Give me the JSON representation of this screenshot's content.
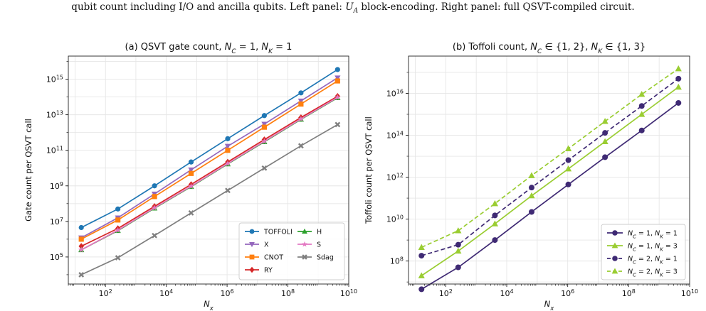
{
  "caption": {
    "text_before": "qubit count including I/O and ancilla qubits. Left panel: ",
    "math": "U",
    "math_sub": "A",
    "text_after": " block-encoding. Right panel: full QSVT-compiled circuit."
  },
  "chart_data": [
    {
      "type": "line",
      "title": "(a) QSVT gate count, N_C = 1, N_K = 1",
      "title_parts": {
        "prefix": "(a) QSVT gate count, ",
        "v1": "N",
        "s1": "C",
        "mid": " = 1, ",
        "v2": "N",
        "s2": "K",
        "suffix": " = 1"
      },
      "xlabel": "N_x",
      "ylabel": "Gate count per QSVT call",
      "xscale": "log",
      "yscale": "log",
      "xlim": [
        6,
        10000000000.0
      ],
      "ylim": [
        3000,
        2e+16
      ],
      "xticks": [
        2,
        4,
        6,
        8,
        10
      ],
      "yticks": [
        5,
        7,
        9,
        11,
        13,
        15
      ],
      "grid": true,
      "legend_position": "lower-right",
      "legend_columns": 2,
      "x": [
        16,
        256,
        4096,
        65536,
        1048576,
        16777216,
        268435456,
        4294967296
      ],
      "series": [
        {
          "name": "TOFFOLI",
          "color": "#1f77b4",
          "marker": "circle",
          "dash": "solid",
          "values": [
            4500000.0,
            50000000.0,
            1000000000.0,
            22000000000.0,
            450000000000.0,
            9000000000000.0,
            170000000000000.0,
            3500000000000000.0
          ]
        },
        {
          "name": "X",
          "color": "#9467bd",
          "marker": "triangle-down",
          "dash": "solid",
          "values": [
            1200000.0,
            16000000.0,
            350000000.0,
            8000000000.0,
            170000000000.0,
            3000000000000.0,
            60000000000000.0,
            1200000000000000.0
          ]
        },
        {
          "name": "CNOT",
          "color": "#ff7f0e",
          "marker": "square",
          "dash": "solid",
          "values": [
            1000000.0,
            12000000.0,
            250000000.0,
            5000000000.0,
            100000000000.0,
            2000000000000.0,
            40000000000000.0,
            800000000000000.0
          ]
        },
        {
          "name": "RY",
          "color": "#d62728",
          "marker": "diamond",
          "dash": "solid",
          "values": [
            400000.0,
            4000000.0,
            70000000.0,
            1200000000.0,
            22000000000.0,
            400000000000.0,
            7000000000000.0,
            110000000000000.0
          ]
        },
        {
          "name": "H",
          "color": "#2ca02c",
          "marker": "triangle-up",
          "dash": "solid",
          "values": [
            250000.0,
            3000000.0,
            55000000.0,
            900000000.0,
            17000000000.0,
            300000000000.0,
            5500000000000.0,
            90000000000000.0
          ]
        },
        {
          "name": "S",
          "color": "#e377c2",
          "marker": "star",
          "dash": "solid",
          "values": [
            250000.0,
            3200000.0,
            58000000.0,
            950000000.0,
            18000000000.0,
            320000000000.0,
            5800000000000.0,
            95000000000000.0
          ]
        },
        {
          "name": "Sdag",
          "color": "#7f7f7f",
          "marker": "x",
          "dash": "solid",
          "values": [
            10000.0,
            90000.0,
            1600000.0,
            30000000.0,
            550000000.0,
            10000000000.0,
            180000000000.0,
            2800000000000.0
          ]
        }
      ],
      "legend_order": [
        "TOFFOLI",
        "X",
        "CNOT",
        "RY",
        "H",
        "S",
        "Sdag"
      ]
    },
    {
      "type": "line",
      "title": "(b) Toffoli count, N_C ∈ {1, 2}, N_K ∈ {1, 3}",
      "title_parts": {
        "prefix": "(b) Toffoli count, ",
        "v1": "N",
        "s1": "C",
        "mid": " ∈ {1, 2}, ",
        "v2": "N",
        "s2": "K",
        "suffix": " ∈ {1, 3}"
      },
      "xlabel": "N_x",
      "ylabel": "Toffoli count per QSVT call",
      "xscale": "log",
      "yscale": "log",
      "xlim": [
        6,
        10000000000.0
      ],
      "ylim": [
        8000000.0,
        6e+17
      ],
      "xticks": [
        2,
        4,
        6,
        8,
        10
      ],
      "yticks": [
        8,
        10,
        12,
        14,
        16
      ],
      "grid": true,
      "legend_position": "lower-right",
      "legend_columns": 1,
      "x": [
        16,
        256,
        4096,
        65536,
        1048576,
        16777216,
        268435456,
        4294967296
      ],
      "series": [
        {
          "name": "N_C = 1, N_K = 1",
          "label_parts": {
            "a": "1",
            "b": "1"
          },
          "color": "#3f2a74",
          "marker": "circle",
          "dash": "solid",
          "values": [
            4500000.0,
            50000000.0,
            1000000000.0,
            22000000000.0,
            450000000000.0,
            9000000000000.0,
            170000000000000.0,
            3500000000000000.0
          ]
        },
        {
          "name": "N_C = 1, N_K = 3",
          "label_parts": {
            "a": "1",
            "b": "3"
          },
          "color": "#9acd32",
          "marker": "triangle-up",
          "dash": "solid",
          "values": [
            20000000.0,
            300000000.0,
            6000000000.0,
            130000000000.0,
            2500000000000.0,
            50000000000000.0,
            1000000000000000.0,
            2e+16
          ]
        },
        {
          "name": "N_C = 2, N_K = 1",
          "label_parts": {
            "a": "2",
            "b": "1"
          },
          "color": "#3f2a74",
          "marker": "circle",
          "dash": "dashed",
          "values": [
            180000000.0,
            600000000.0,
            15000000000.0,
            320000000000.0,
            6500000000000.0,
            130000000000000.0,
            2500000000000000.0,
            5e+16
          ]
        },
        {
          "name": "N_C = 2, N_K = 3",
          "label_parts": {
            "a": "2",
            "b": "3"
          },
          "color": "#9acd32",
          "marker": "triangle-up",
          "dash": "dashed",
          "values": [
            450000000.0,
            2800000000.0,
            55000000000.0,
            1200000000000.0,
            23000000000000.0,
            460000000000000.0,
            9000000000000000.0,
            1.5e+17
          ]
        }
      ],
      "legend_order": [
        "N_C = 1, N_K = 1",
        "N_C = 1, N_K = 3",
        "N_C = 2, N_K = 1",
        "N_C = 2, N_K = 3"
      ]
    }
  ]
}
